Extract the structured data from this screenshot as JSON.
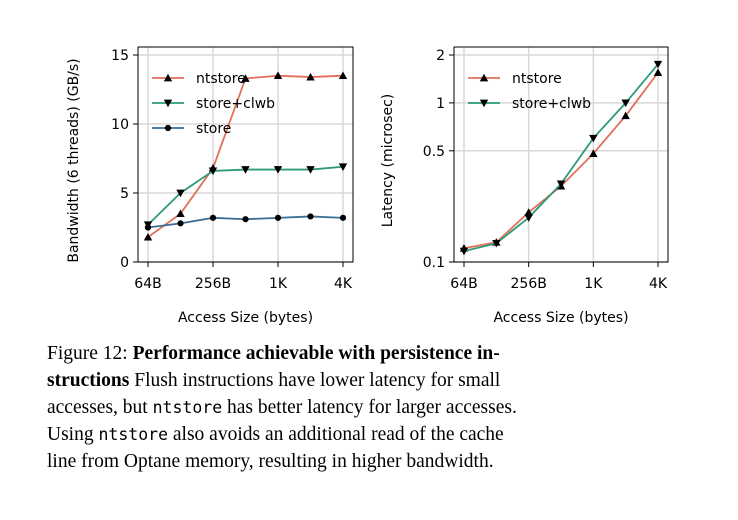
{
  "chart_data": [
    {
      "type": "line",
      "xlabel": "Access Size (bytes)",
      "ylabel": "Bandwidth (6 threads) (GB/s)",
      "x_ticks": [
        "64B",
        "256B",
        "1K",
        "4K"
      ],
      "y_ticks": [
        "0",
        "5",
        "10",
        "15"
      ],
      "ylim": [
        0,
        15
      ],
      "grid": true,
      "legend": "top-left",
      "series": [
        {
          "name": "ntstore",
          "marker": "triangle-up",
          "color": "#e2705a",
          "x": [
            "64B",
            "128B",
            "256B",
            "512B",
            "1K",
            "2K",
            "4K"
          ],
          "values": [
            1.8,
            3.5,
            6.8,
            13.3,
            13.5,
            13.4,
            13.5
          ]
        },
        {
          "name": "store+clwb",
          "marker": "triangle-down",
          "color": "#2e9a78",
          "x": [
            "64B",
            "128B",
            "256B",
            "512B",
            "1K",
            "2K",
            "4K"
          ],
          "values": [
            2.7,
            5.0,
            6.6,
            6.7,
            6.7,
            6.7,
            6.9
          ]
        },
        {
          "name": "store",
          "marker": "circle",
          "color": "#3b6e93",
          "x": [
            "64B",
            "128B",
            "256B",
            "512B",
            "1K",
            "2K",
            "4K"
          ],
          "values": [
            2.5,
            2.8,
            3.2,
            3.1,
            3.2,
            3.3,
            3.2
          ]
        }
      ]
    },
    {
      "type": "line",
      "xlabel": "Access Size (bytes)",
      "ylabel": "Latency (microsec)",
      "x_ticks": [
        "64B",
        "256B",
        "1K",
        "4K"
      ],
      "y_ticks": [
        "0.1",
        "0.5",
        "1",
        "2"
      ],
      "yscale": "log",
      "ylim": [
        0.1,
        2
      ],
      "grid": true,
      "legend": "top-left",
      "series": [
        {
          "name": "ntstore",
          "marker": "triangle-up",
          "color": "#e2705a",
          "x": [
            "64B",
            "128B",
            "256B",
            "512B",
            "1K",
            "2K",
            "4K"
          ],
          "values": [
            0.122,
            0.133,
            0.205,
            0.3,
            0.48,
            0.83,
            1.55
          ]
        },
        {
          "name": "store+clwb",
          "marker": "triangle-down",
          "color": "#2e9a78",
          "x": [
            "64B",
            "128B",
            "256B",
            "512B",
            "1K",
            "2K",
            "4K"
          ],
          "values": [
            0.117,
            0.131,
            0.19,
            0.31,
            0.6,
            1.0,
            1.75
          ]
        }
      ]
    }
  ],
  "caption": {
    "label": "Figure 12:",
    "bold_title_1": "Performance achievable with persistence in-",
    "bold_title_2": "structions",
    "text_1": " Flush instructions have lower latency for small",
    "text_2": "accesses, but ",
    "code_1": "ntstore",
    "text_3": " has better latency for larger accesses.",
    "text_4": "Using ",
    "code_2": "ntstore",
    "text_5": " also avoids an additional read of the cache",
    "text_6": "line from Optane memory, resulting in higher bandwidth."
  }
}
